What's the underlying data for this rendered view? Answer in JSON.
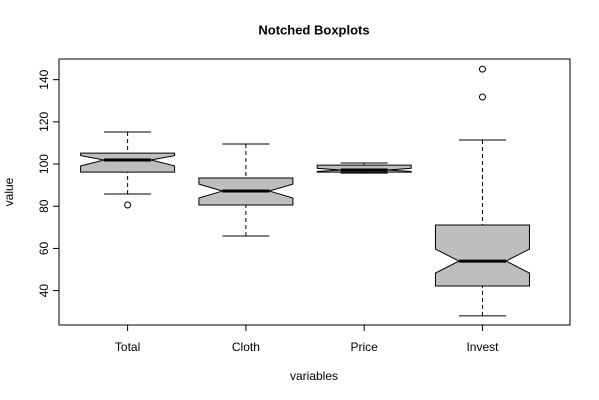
{
  "chart_data": {
    "type": "boxplot",
    "title": "Notched Boxplots",
    "x_label": "variables",
    "y_label": "value",
    "categories": [
      "Total",
      "Cloth",
      "Price",
      "Invest"
    ],
    "boxes": [
      {
        "whisker_low": 85.8,
        "q1": 96.2,
        "median": 101.9,
        "q3": 105.2,
        "whisker_high": 115.2,
        "notch_low": 99.1,
        "notch_high": 104.0,
        "outliers": [
          80.6
        ]
      },
      {
        "whisker_low": 65.9,
        "q1": 80.6,
        "median": 87.2,
        "q3": 93.4,
        "whisker_high": 109.5,
        "notch_low": 83.9,
        "notch_high": 90.5,
        "outliers": []
      },
      {
        "whisker_low": 95.7,
        "q1": 96.2,
        "median": 97.2,
        "q3": 99.5,
        "whisker_high": 100.5,
        "notch_low": 96.5,
        "notch_high": 98.0,
        "outliers": []
      },
      {
        "whisker_low": 28.0,
        "q1": 42.2,
        "median": 54.0,
        "q3": 71.1,
        "whisker_high": 111.4,
        "notch_low": 48.3,
        "notch_high": 59.7,
        "outliers": [
          145.0,
          131.8
        ]
      }
    ],
    "color": "#bebebe",
    "ylim": [
      23.7,
      149.8
    ],
    "yticks": [
      40,
      60,
      80,
      100,
      120,
      140
    ]
  }
}
